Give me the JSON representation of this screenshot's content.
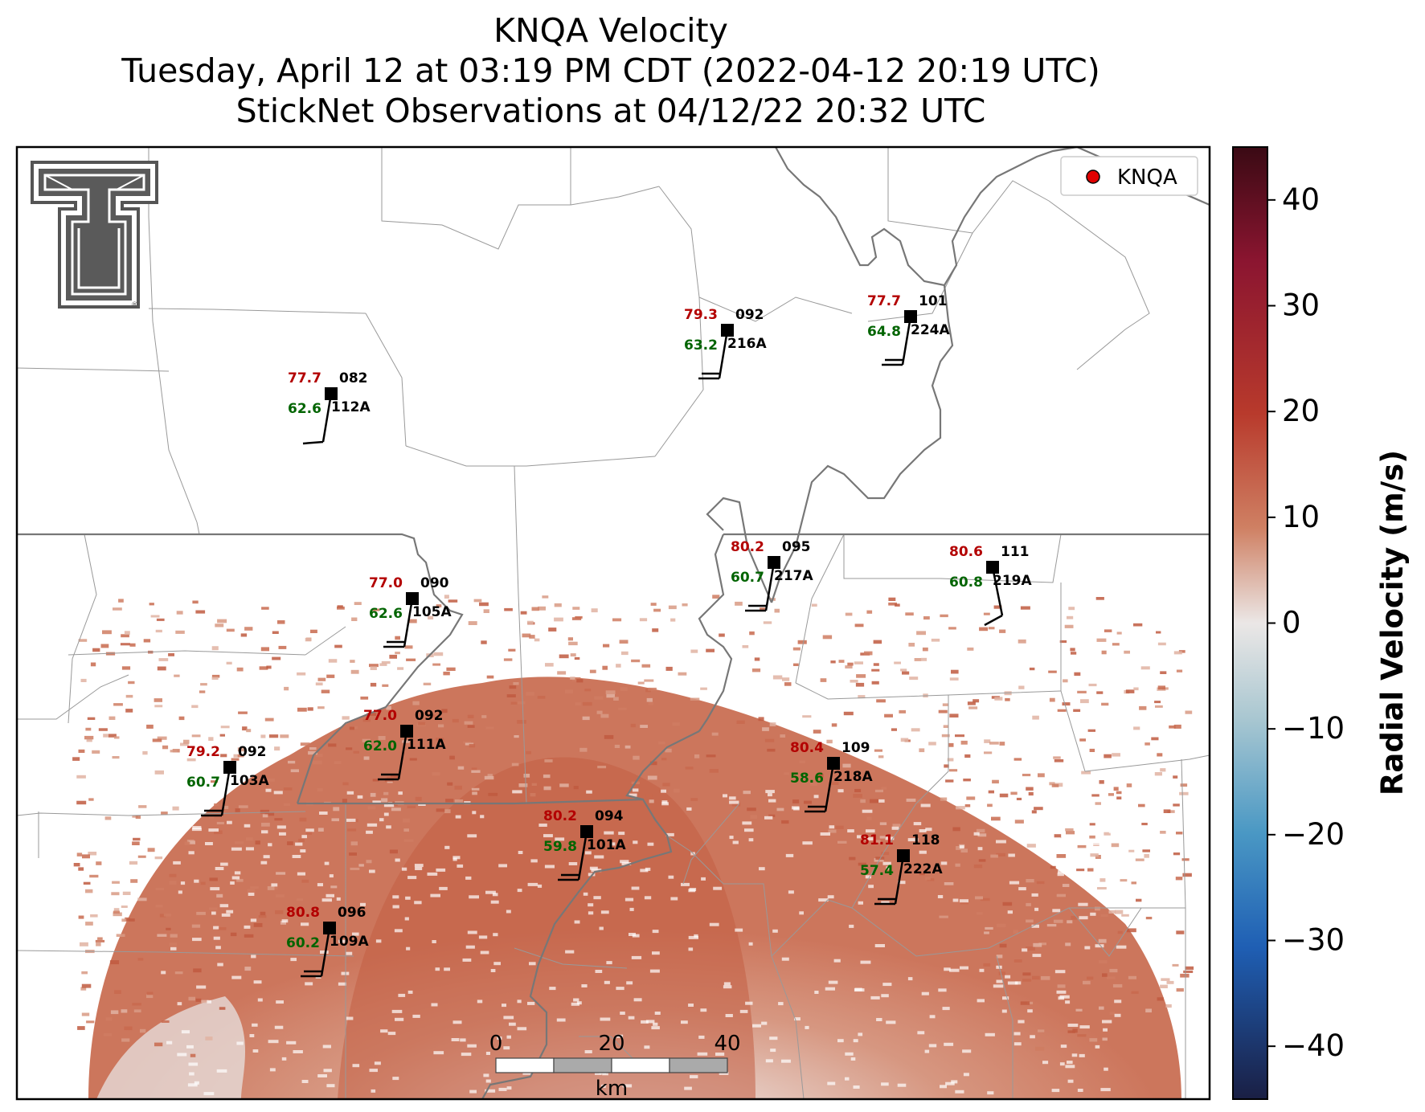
{
  "title": {
    "line1": "KNQA Velocity",
    "line2": "Tuesday, April 12 at 03:19 PM CDT (2022-04-12 20:19 UTC)",
    "line3": "StickNet Observations at 04/12/22 20:32 UTC"
  },
  "legend": {
    "label": "KNQA",
    "marker_color": "#e00000"
  },
  "logo": {
    "name": "Texas Tech Double T"
  },
  "colorbar": {
    "label": "Radial Velocity (m/s)",
    "ticks": [
      "40",
      "30",
      "20",
      "10",
      "0",
      "−10",
      "−20",
      "−30",
      "−40"
    ],
    "min": -45,
    "max": 45,
    "tick_values": [
      40,
      30,
      20,
      10,
      0,
      -10,
      -20,
      -30,
      -40
    ],
    "colors": [
      "#1a1f44",
      "#1f5fb4",
      "#4a98c4",
      "#9cc3d1",
      "#e9e6e6",
      "#e3b3a3",
      "#c86a4e",
      "#a82a2a",
      "#8b1530",
      "#3a0a14"
    ]
  },
  "scalebar": {
    "labels": [
      "0",
      "20",
      "40"
    ],
    "unit": "km"
  },
  "stations": [
    {
      "id": "112A",
      "temp": "77.7",
      "dir": "082",
      "dew": "62.6"
    },
    {
      "id": "216A",
      "temp": "79.3",
      "dir": "092",
      "dew": "63.2"
    },
    {
      "id": "224A",
      "temp": "77.7",
      "dir": "101",
      "dew": "64.8"
    },
    {
      "id": "105A",
      "temp": "77.0",
      "dir": "090",
      "dew": "62.6"
    },
    {
      "id": "217A",
      "temp": "80.2",
      "dir": "095",
      "dew": "60.7"
    },
    {
      "id": "219A",
      "temp": "80.6",
      "dir": "111",
      "dew": "60.8"
    },
    {
      "id": "111A",
      "temp": "77.0",
      "dir": "092",
      "dew": "62.0"
    },
    {
      "id": "103A",
      "temp": "79.2",
      "dir": "092",
      "dew": "60.7"
    },
    {
      "id": "218A",
      "temp": "80.4",
      "dir": "109",
      "dew": "58.6"
    },
    {
      "id": "101A",
      "temp": "80.2",
      "dir": "094",
      "dew": "59.8"
    },
    {
      "id": "222A",
      "temp": "81.1",
      "dir": "118",
      "dew": "57.4"
    },
    {
      "id": "109A",
      "temp": "80.8",
      "dir": "096",
      "dew": "60.2"
    }
  ],
  "colors": {
    "temp": "#b30000",
    "dew": "#006400",
    "text": "#000000"
  }
}
